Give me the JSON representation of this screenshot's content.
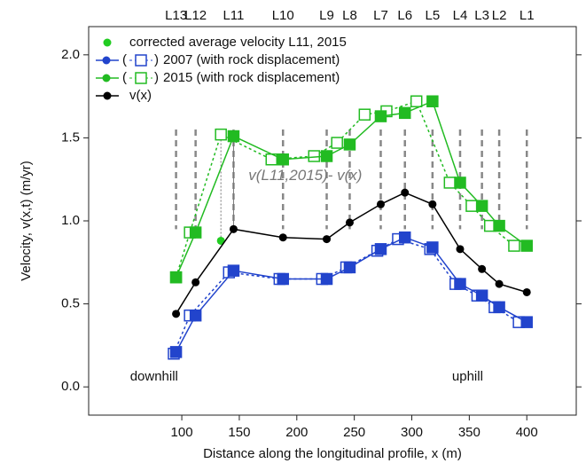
{
  "chart_data": {
    "type": "line",
    "y_label": "Velocity, v(x,t) (m/yr)",
    "x_label": "Distance along the longitudinal profile, x (m)",
    "xlim": [
      19,
      443
    ],
    "ylim": [
      -0.17,
      2.17
    ],
    "xticks": [
      100,
      150,
      200,
      250,
      300,
      350,
      400
    ],
    "yticks": [
      {
        "value": 0,
        "label": "0.0"
      },
      {
        "value": 0.5,
        "label": "0.5"
      },
      {
        "value": 1,
        "label": "1.0"
      },
      {
        "value": 1.5,
        "label": "1.5"
      },
      {
        "value": 2,
        "label": "2.0"
      }
    ],
    "stations": {
      "labels": [
        "L13",
        "L12",
        "L11",
        "L10",
        "L9",
        "L8",
        "L7",
        "L6",
        "L5",
        "L4",
        "L3",
        "L2",
        "L1"
      ],
      "x": [
        95,
        112,
        145,
        188,
        226,
        246,
        273,
        294,
        318,
        342,
        361,
        376,
        400
      ]
    },
    "series": [
      {
        "name": "corrected average velocity L11, 2015",
        "color": "#22cc22",
        "marker": "circle",
        "x": [
          134
        ],
        "values": [
          0.88
        ]
      },
      {
        "name": "2007 (with rock displacement)",
        "color": "#2244cc",
        "marker": "square",
        "x": [
          95,
          112,
          145,
          188,
          226,
          246,
          273,
          294,
          318,
          342,
          361,
          376,
          400
        ],
        "values": [
          0.21,
          0.43,
          0.7,
          0.65,
          0.65,
          0.72,
          0.83,
          0.9,
          0.84,
          0.62,
          0.55,
          0.48,
          0.39
        ],
        "open": {
          "x": [
            93,
            107,
            141,
            185,
            222,
            243,
            270,
            288,
            316,
            338,
            357,
            372,
            393
          ],
          "values": [
            0.2,
            0.43,
            0.69,
            0.65,
            0.65,
            0.72,
            0.82,
            0.89,
            0.83,
            0.62,
            0.55,
            0.48,
            0.39
          ]
        }
      },
      {
        "name": "2015 (with rock displacement)",
        "color": "#22bb22",
        "marker": "square",
        "x": [
          95,
          112,
          145,
          188,
          226,
          246,
          273,
          294,
          318,
          342,
          361,
          376,
          400
        ],
        "values": [
          0.66,
          0.93,
          1.51,
          1.37,
          1.39,
          1.46,
          1.63,
          1.65,
          1.72,
          1.23,
          1.09,
          0.97,
          0.85
        ],
        "open": {
          "x": [
            95,
            107,
            134,
            178,
            215,
            235,
            259,
            278,
            304,
            333,
            352,
            368,
            389
          ],
          "values": [
            0.66,
            0.93,
            1.52,
            1.37,
            1.39,
            1.47,
            1.64,
            1.66,
            1.72,
            1.23,
            1.09,
            0.97,
            0.85
          ]
        }
      },
      {
        "name": "v(x)",
        "color": "#000000",
        "marker": "circle",
        "x": [
          95,
          112,
          145,
          188,
          226,
          246,
          273,
          294,
          318,
          342,
          361,
          376,
          400
        ],
        "values": [
          0.44,
          0.63,
          0.95,
          0.9,
          0.89,
          0.99,
          1.1,
          1.17,
          1.1,
          0.83,
          0.71,
          0.62,
          0.57
        ]
      }
    ],
    "annotations": [
      {
        "text": "v(L11,2015)- v(x)",
        "x": 158,
        "y": 1.27
      },
      {
        "text": "downhill",
        "x": 55,
        "y": 0.06
      },
      {
        "text": "uphill",
        "x": 335,
        "y": 0.06
      }
    ]
  }
}
